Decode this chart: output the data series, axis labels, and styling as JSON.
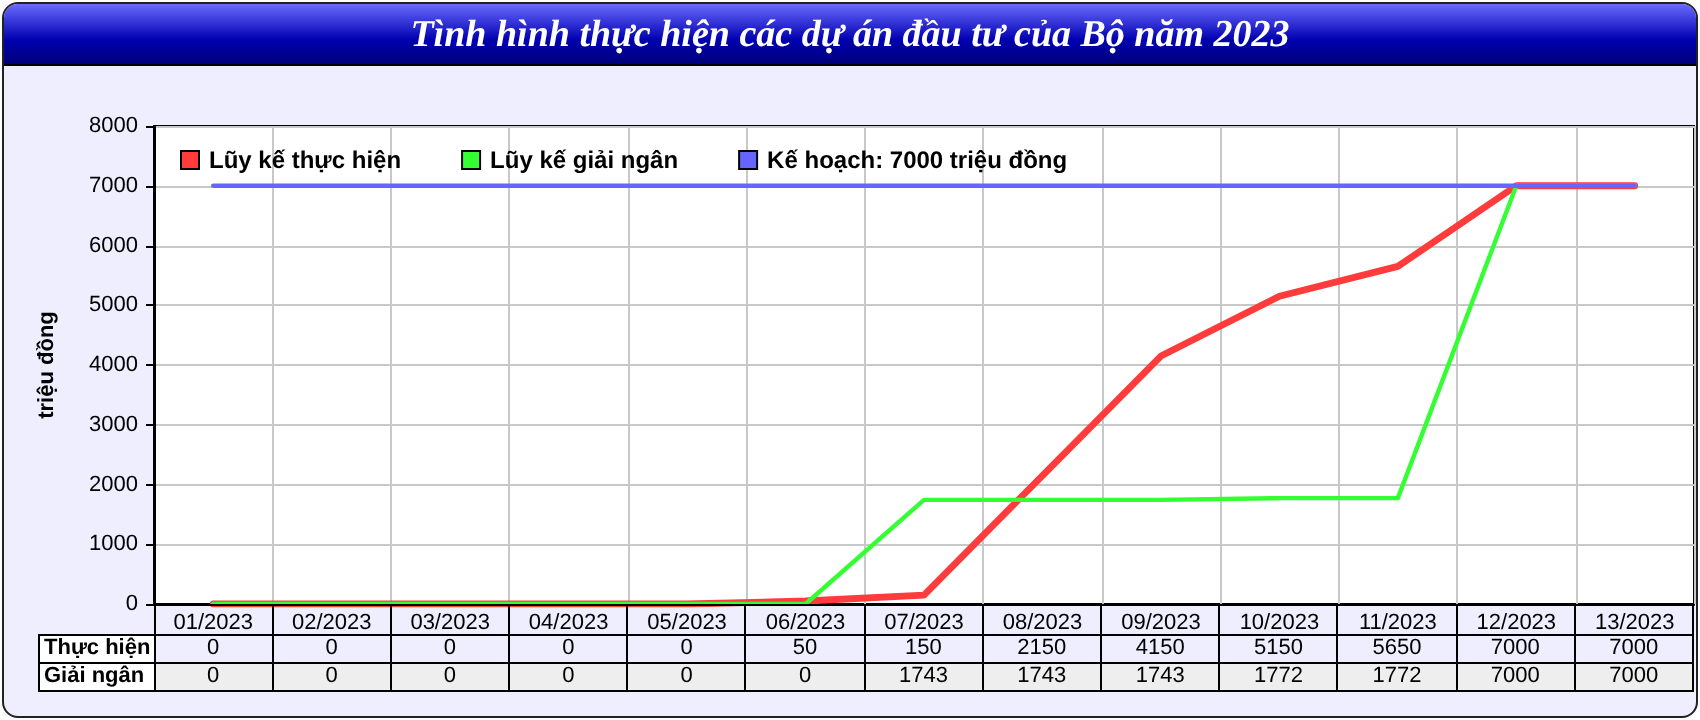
{
  "chart_data": {
    "type": "line",
    "title": "Tình hình thực hiện các dự án đầu tư của Bộ năm 2023",
    "ylabel": "triệu đồng",
    "categories": [
      "01/2023",
      "02/2023",
      "03/2023",
      "04/2023",
      "05/2023",
      "06/2023",
      "07/2023",
      "08/2023",
      "09/2023",
      "10/2023",
      "11/2023",
      "12/2023",
      "13/2023"
    ],
    "series": [
      {
        "name": "Lũy kế thực hiện",
        "color": "#ff3b3b",
        "values": [
          0,
          0,
          0,
          0,
          0,
          50,
          150,
          2150,
          4150,
          5150,
          5650,
          7000,
          7000
        ],
        "value_labels": [
          "0",
          "0",
          "0",
          "0",
          "0",
          "50",
          "150",
          "2150",
          "4150",
          "5150",
          "5650",
          "7000",
          "7000"
        ]
      },
      {
        "name": "Lũy kế giải ngân",
        "color": "#33ff33",
        "values": [
          0,
          0,
          0,
          0,
          0,
          0,
          1743,
          1743,
          1743,
          1772,
          1772,
          7000,
          7000
        ],
        "value_labels": [
          "0",
          "0",
          "0",
          "0",
          "0",
          "0",
          "1743",
          "1743",
          "1743",
          "1772",
          "1772",
          "7000",
          "7000"
        ]
      },
      {
        "name": "Kế hoạch: 7000 triệu đồng",
        "color": "#6666ff",
        "values": [
          7000,
          7000,
          7000,
          7000,
          7000,
          7000,
          7000,
          7000,
          7000,
          7000,
          7000,
          7000,
          7000
        ]
      }
    ],
    "annotations": [
      "Thực hiện",
      "Giải ngân"
    ],
    "ylim": [
      0,
      8000
    ],
    "yticks": [
      0,
      1000,
      2000,
      3000,
      4000,
      5000,
      6000,
      7000,
      8000
    ],
    "grid": true,
    "legend": "top left",
    "marker": "none",
    "line_style": "solid"
  }
}
